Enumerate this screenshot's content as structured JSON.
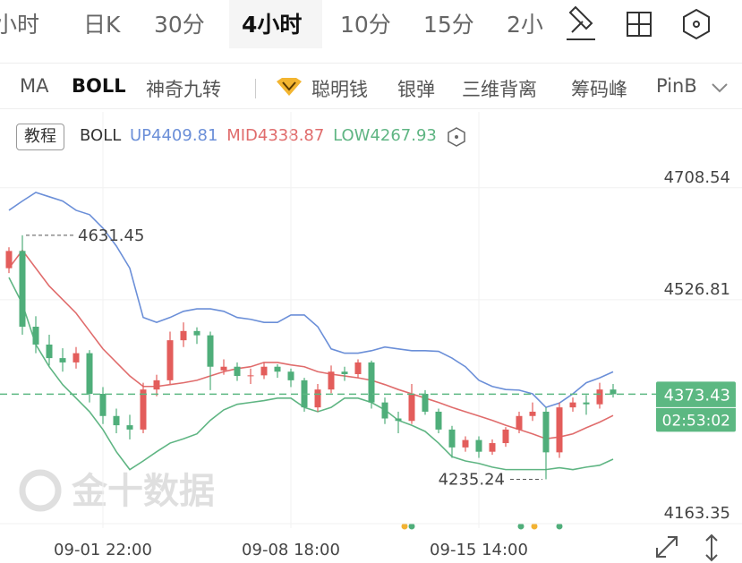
{
  "header": {
    "tabs": [
      "小时",
      "日K",
      "30分",
      "4小时",
      "10分",
      "15分",
      "2小"
    ]
  },
  "indicators": {
    "items": [
      "MA",
      "BOLL",
      "神奇九转",
      "聪明钱",
      "银弹",
      "三维背离",
      "筹码峰",
      "PinB"
    ]
  },
  "tutorial_button": "教程",
  "watermark": "金十数据",
  "chart_data": {
    "type": "candlestick",
    "indicator": "BOLL",
    "countdown": "02:53:02",
    "up_color": "#e35d5b",
    "down_color": "#4fae7a",
    "categories": [
      null,
      null,
      null,
      null,
      null,
      null,
      null,
      "09-01 22:00",
      null,
      null,
      null,
      null,
      null,
      null,
      null,
      null,
      null,
      null,
      null,
      null,
      null,
      "09-08 18:00",
      null,
      null,
      null,
      null,
      null,
      null,
      null,
      null,
      null,
      null,
      null,
      null,
      null,
      "09-15 14:00",
      null,
      null,
      null,
      null,
      null,
      null,
      null,
      null,
      null,
      null
    ],
    "open": [
      4578,
      4606,
      4483,
      4454,
      4432,
      4425,
      4440,
      4374,
      4338,
      4323,
      4316,
      4381,
      4396,
      4461,
      4476,
      4469,
      4412,
      4418,
      4403,
      4404,
      4418,
      4410,
      4396,
      4352,
      4381,
      4410,
      4406,
      4425,
      4360,
      4334,
      4330,
      4374,
      4345,
      4316,
      4287,
      4299,
      4280,
      4294,
      4316,
      4338,
      4345,
      4279,
      4352,
      4360,
      4357,
      4381
    ],
    "high": [
      4612,
      4631.45,
      4500,
      4470,
      4448,
      4450,
      4445,
      4385,
      4350,
      4340,
      4392,
      4405,
      4475,
      4490,
      4482,
      4475,
      4430,
      4425,
      4415,
      4425,
      4422,
      4415,
      4400,
      4390,
      4420,
      4418,
      4430,
      4428,
      4368,
      4345,
      4390,
      4380,
      4350,
      4322,
      4305,
      4305,
      4300,
      4320,
      4345,
      4360,
      4352,
      4360,
      4368,
      4372,
      4392,
      4390
    ],
    "low": [
      4570,
      4470,
      4440,
      4420,
      4410,
      4415,
      4360,
      4325,
      4310,
      4300,
      4310,
      4370,
      4390,
      4450,
      4455,
      4380,
      4405,
      4395,
      4390,
      4398,
      4400,
      4385,
      4345,
      4345,
      4375,
      4395,
      4400,
      4350,
      4325,
      4310,
      4325,
      4340,
      4310,
      4270,
      4280,
      4270,
      4275,
      4288,
      4310,
      4330,
      4235.24,
      4270,
      4345,
      4340,
      4350,
      4368
    ],
    "close": [
      4606,
      4483,
      4454,
      4432,
      4425,
      4440,
      4374,
      4338,
      4323,
      4316,
      4381,
      4396,
      4461,
      4476,
      4469,
      4418,
      4418,
      4403,
      4404,
      4418,
      4410,
      4396,
      4352,
      4381,
      4410,
      4406,
      4425,
      4360,
      4334,
      4330,
      4374,
      4345,
      4316,
      4287,
      4299,
      4280,
      4294,
      4316,
      4338,
      4345,
      4279,
      4352,
      4360,
      4357,
      4381,
      4373.43
    ],
    "series": [
      {
        "name": "UP",
        "color": "#6b8fd8",
        "values": [
          4672,
          4687,
          4701,
          4694,
          4687,
          4672,
          4665,
          4643,
          4614,
          4578,
          4498,
          4490,
          4498,
          4508,
          4512,
          4512,
          4508,
          4498,
          4495,
          4490,
          4490,
          4502,
          4502,
          4483,
          4447,
          4440,
          4440,
          4444,
          4450,
          4447,
          4444,
          4444,
          4443,
          4432,
          4418,
          4396,
          4386,
          4381,
          4380,
          4374,
          4352,
          4359,
          4374,
          4392,
          4400,
          4409.81
        ]
      },
      {
        "name": "MID",
        "color": "#e06c6c",
        "values": [
          4578,
          4607,
          4578,
          4549,
          4527,
          4505,
          4476,
          4447,
          4425,
          4403,
          4386,
          4386,
          4389,
          4392,
          4396,
          4403,
          4410,
          4415,
          4418,
          4425,
          4425,
          4421,
          4418,
          4410,
          4406,
          4403,
          4400,
          4396,
          4389,
          4381,
          4374,
          4367,
          4360,
          4352,
          4345,
          4338,
          4331,
          4323,
          4316,
          4309,
          4301,
          4304,
          4309,
          4319,
          4328,
          4338.87
        ]
      },
      {
        "name": "LOW",
        "color": "#5fb583",
        "values": [
          4563,
          4520,
          4454,
          4418,
          4389,
          4367,
          4345,
          4316,
          4280,
          4251,
          4265,
          4280,
          4294,
          4301,
          4309,
          4331,
          4348,
          4357,
          4360,
          4363,
          4367,
          4367,
          4352,
          4345,
          4352,
          4367,
          4367,
          4360,
          4348,
          4331,
          4323,
          4313,
          4294,
          4272,
          4265,
          4261,
          4255,
          4251,
          4251,
          4251,
          4251,
          4254,
          4251,
          4255,
          4258,
          4267.93
        ]
      }
    ],
    "ylim": [
      4156,
      4810
    ],
    "yticks": [
      4708.54,
      4526.81,
      4163.35
    ],
    "price_line_color": "#5cb882"
  }
}
